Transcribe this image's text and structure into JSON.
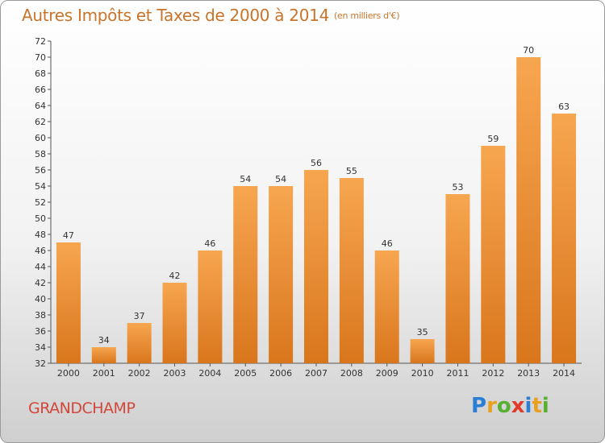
{
  "title": "Autres Impôts et Taxes de 2000 à 2014",
  "unit": "(en milliers d'€)",
  "location": "GRANDCHAMP",
  "brand": {
    "letters": [
      "P",
      "r",
      "o",
      "x",
      "i",
      "t",
      "i"
    ],
    "colors": [
      "#2a7fd4",
      "#e8a020",
      "#58b032",
      "#e23a2a",
      "#2a7fd4",
      "#e8a020",
      "#58b032"
    ]
  },
  "colors": {
    "bar_light": "#f7a650",
    "bar_dark": "#d9761c",
    "title": "#c8742a",
    "location": "#d2473a"
  },
  "chart_data": {
    "type": "bar",
    "title": "Autres Impôts et Taxes de 2000 à 2014",
    "subtitle": "(en milliers d'€)",
    "categories": [
      "2000",
      "2001",
      "2002",
      "2003",
      "2004",
      "2005",
      "2006",
      "2007",
      "2008",
      "2009",
      "2010",
      "2011",
      "2012",
      "2013",
      "2014"
    ],
    "values": [
      47,
      34,
      37,
      42,
      46,
      54,
      54,
      56,
      55,
      46,
      35,
      53,
      59,
      70,
      63
    ],
    "ylim": [
      32,
      72
    ],
    "yticks": [
      32,
      34,
      36,
      38,
      40,
      42,
      44,
      46,
      48,
      50,
      52,
      54,
      56,
      58,
      60,
      62,
      64,
      66,
      68,
      70,
      72
    ],
    "grid": false,
    "xlabel": "",
    "ylabel": ""
  }
}
